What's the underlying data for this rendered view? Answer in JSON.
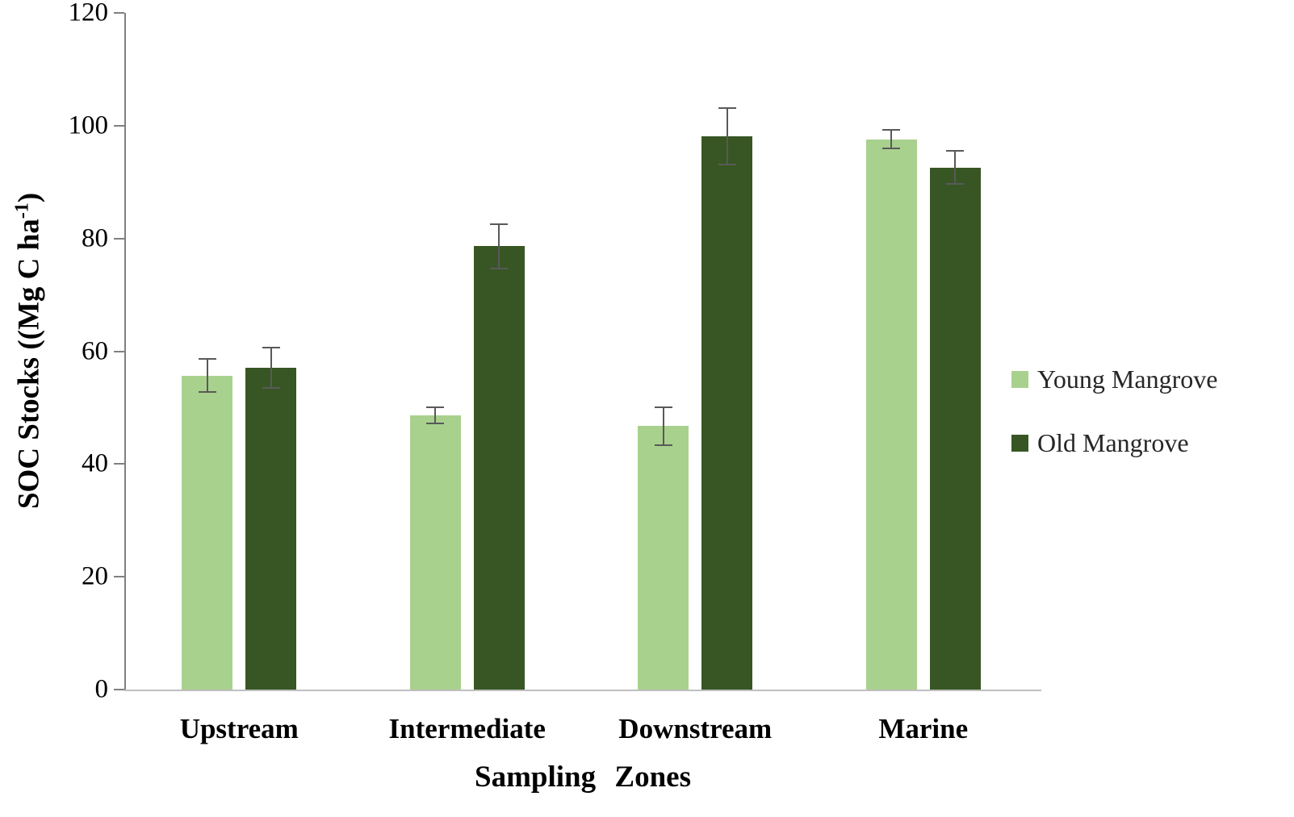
{
  "chart_data": {
    "type": "bar",
    "title": "",
    "xlabel": "Sampling Zones",
    "ylabel_prefix": "SOC Stocks ((Mg C ha",
    "ylabel_sup": "-1",
    "ylabel_suffix": ")",
    "categories": [
      "Upstream",
      "Intermediate",
      "Downstream",
      "Marine"
    ],
    "series": [
      {
        "name": "Young Mangrove",
        "color": "#a9d18e",
        "values": [
          55.7,
          48.6,
          46.7,
          97.6
        ],
        "errors": [
          2.9,
          1.4,
          3.3,
          1.7
        ]
      },
      {
        "name": "Old Mangrove",
        "color": "#375623",
        "values": [
          57.1,
          78.6,
          98.1,
          92.6
        ],
        "errors": [
          3.6,
          3.9,
          5.0,
          2.9
        ]
      }
    ],
    "ylim": [
      0,
      120
    ],
    "yticks": [
      0,
      20,
      40,
      60,
      80,
      100,
      120
    ],
    "grid": false,
    "legend_position": "right",
    "error_bar_color": "#595959",
    "axis_line_color": "#bfbfbf"
  }
}
